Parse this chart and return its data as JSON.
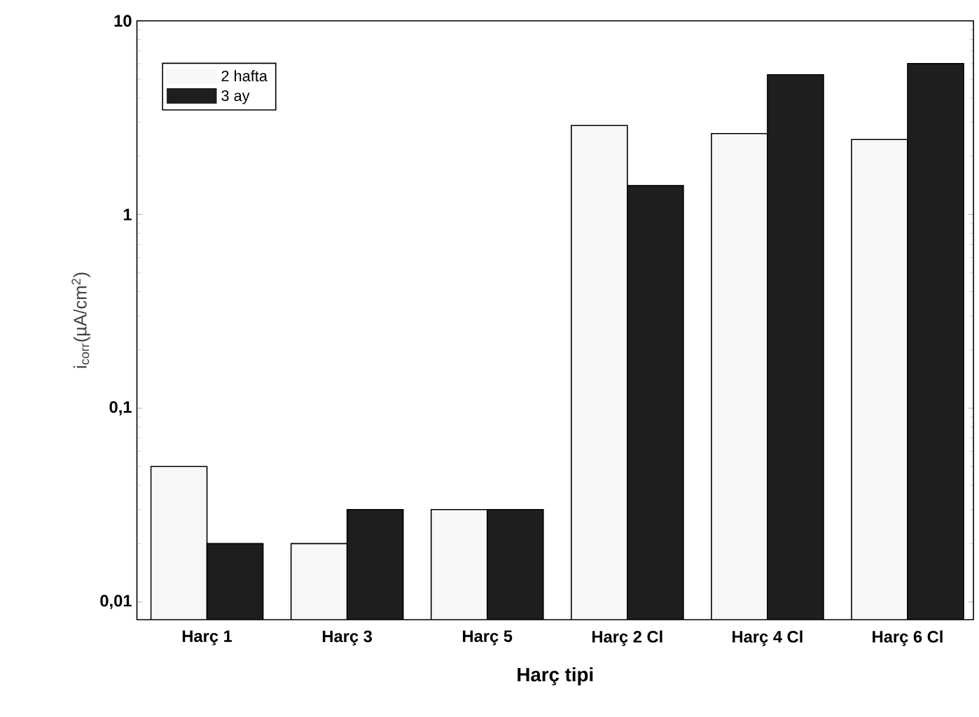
{
  "chart_data": {
    "type": "bar",
    "xlabel": "Harç tipi",
    "ylabel": "i$_{corr}$(µA/cm$^{2}$)",
    "categories": [
      "Harç 1",
      "Harç 3",
      "Harç 5",
      "Harç 2 Cl",
      "Harç 4 Cl",
      "Harç 6 Cl"
    ],
    "series": [
      {
        "name": "2 hafta",
        "color": "#f7f7f7",
        "values": [
          0.05,
          0.02,
          0.03,
          2.88,
          2.62,
          2.44
        ]
      },
      {
        "name": "3 ay",
        "color": "#1e1e1e",
        "values": [
          0.02,
          0.03,
          0.03,
          1.41,
          5.27,
          6.02
        ]
      }
    ],
    "log": true,
    "ylim": [
      0.0081,
      10
    ],
    "yticks": [
      {
        "value": 0.01,
        "label": "0,01"
      },
      {
        "value": 0.1,
        "label": "0,1"
      },
      1,
      10
    ],
    "legend": "top left"
  }
}
